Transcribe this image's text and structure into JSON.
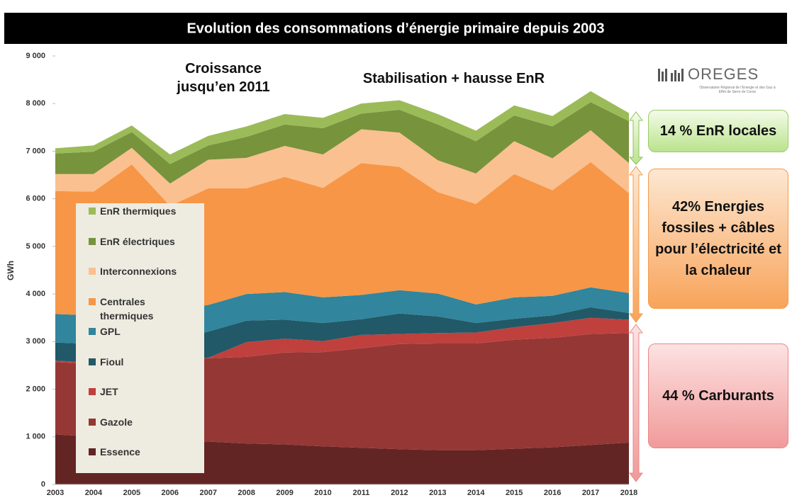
{
  "chart_data": {
    "type": "area",
    "stacked": true,
    "title": "Evolution des consommations d’énergie primaire depuis 2003",
    "y_label": "GWh",
    "categories": [
      "2003",
      "2004",
      "2005",
      "2006",
      "2007",
      "2008",
      "2009",
      "2010",
      "2011",
      "2012",
      "2013",
      "2014",
      "2015",
      "2016",
      "2017",
      "2018"
    ],
    "series": [
      {
        "name": "Essence",
        "color": "#632523",
        "values": [
          1050,
          1000,
          970,
          930,
          900,
          860,
          840,
          800,
          770,
          740,
          720,
          720,
          750,
          780,
          830,
          880
        ]
      },
      {
        "name": "Gazole",
        "color": "#953735",
        "values": [
          1520,
          1530,
          1590,
          1660,
          1750,
          1820,
          1930,
          1980,
          2090,
          2210,
          2240,
          2240,
          2290,
          2300,
          2330,
          2300
        ]
      },
      {
        "name": "JET",
        "color": "#c0403d",
        "values": [
          30,
          30,
          40,
          30,
          10,
          310,
          290,
          230,
          280,
          210,
          220,
          230,
          260,
          310,
          340,
          280
        ]
      },
      {
        "name": "Fioul",
        "color": "#215968",
        "values": [
          380,
          390,
          400,
          430,
          550,
          450,
          400,
          380,
          330,
          430,
          350,
          200,
          180,
          160,
          220,
          140
        ]
      },
      {
        "name": "GPL",
        "color": "#31859c",
        "values": [
          600,
          600,
          600,
          600,
          560,
          560,
          580,
          540,
          510,
          490,
          480,
          390,
          450,
          410,
          420,
          420
        ]
      },
      {
        "name": "Centrales thermiques",
        "color": "#f79646",
        "values": [
          2580,
          2600,
          3120,
          2200,
          2450,
          2220,
          2420,
          2300,
          2770,
          2590,
          2130,
          2110,
          2590,
          2220,
          2630,
          2100
        ]
      },
      {
        "name": "Interconnexions",
        "color": "#fac090",
        "values": [
          360,
          370,
          350,
          470,
          600,
          640,
          650,
          700,
          710,
          720,
          670,
          640,
          690,
          670,
          670,
          630
        ]
      },
      {
        "name": "EnR électriques",
        "color": "#77933c",
        "values": [
          430,
          470,
          330,
          410,
          300,
          440,
          450,
          550,
          330,
          480,
          750,
          680,
          540,
          670,
          590,
          880
        ]
      },
      {
        "name": "EnR thermiques",
        "color": "#9bbb59",
        "values": [
          110,
          130,
          140,
          200,
          200,
          220,
          220,
          220,
          210,
          200,
          220,
          220,
          210,
          220,
          230,
          170
        ]
      }
    ],
    "ylim": [
      0,
      9000
    ],
    "yticks": [
      0,
      {
        "value": 1000,
        "label": "1 000"
      },
      {
        "value": 2000,
        "label": "2 000"
      },
      {
        "value": 3000,
        "label": "3 000"
      },
      {
        "value": 4000,
        "label": "4 000"
      },
      {
        "value": 5000,
        "label": "5 000"
      },
      {
        "value": 6000,
        "label": "6 000"
      },
      {
        "value": 7000,
        "label": "7 000"
      },
      {
        "value": 8000,
        "label": "8 000"
      },
      {
        "value": 9000,
        "label": "9 000"
      }
    ],
    "grid": false,
    "annotations": [
      "Croissance jusqu’en 2011",
      "Stabilisation + hausse EnR"
    ],
    "callouts": [
      "14 % EnR locales",
      "42% Energies fossiles + câbles pour l’électricité et la chaleur",
      "44 % Carburants"
    ],
    "logo": {
      "name": "OREGES",
      "tagline": "Observatoire Régional de l’Energie et des Gaz à Effet de Serre de Corse"
    }
  }
}
